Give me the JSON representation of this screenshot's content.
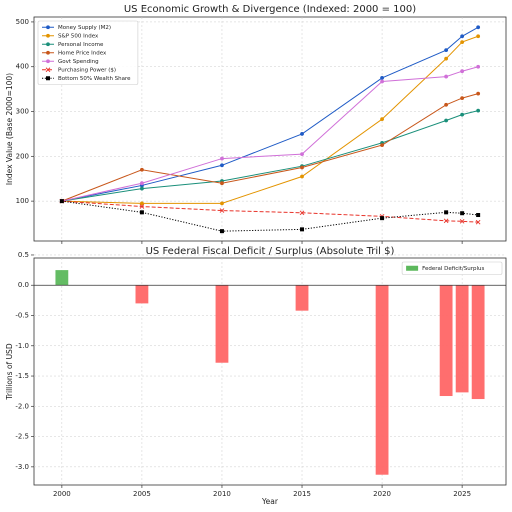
{
  "chart_data": [
    {
      "type": "line",
      "title": "US Economic Growth & Divergence (Indexed: 2000 = 100)",
      "y_label": "Index Value (Base 2000=100)",
      "x": [
        2000,
        2005,
        2010,
        2015,
        2020,
        2024,
        2025,
        2026
      ],
      "xlim": [
        1998.26,
        2027.74
      ],
      "xticks": [
        2000,
        2005,
        2010,
        2015,
        2020,
        2025
      ],
      "ylim": [
        11,
        511
      ],
      "yticks": [
        100,
        200,
        300,
        400,
        500
      ],
      "grid": true,
      "legend": "upper left",
      "series": [
        {
          "name": "Money Supply (M2)",
          "color": "#1f5bc6",
          "marker": "circle",
          "linestyle": "solid",
          "values": [
            100,
            135,
            180,
            250,
            375,
            437,
            468,
            488
          ]
        },
        {
          "name": "S&P 500 Index",
          "color": "#e39400",
          "marker": "circle",
          "linestyle": "solid",
          "values": [
            100,
            95,
            95,
            155,
            283,
            418,
            455,
            468
          ]
        },
        {
          "name": "Personal Income",
          "color": "#1a8f7a",
          "marker": "circle",
          "linestyle": "solid",
          "values": [
            100,
            128,
            145,
            178,
            230,
            280,
            293,
            302
          ]
        },
        {
          "name": "Home Price Index",
          "color": "#c8571b",
          "marker": "circle",
          "linestyle": "solid",
          "values": [
            100,
            170,
            140,
            175,
            225,
            315,
            330,
            340
          ]
        },
        {
          "name": "Govt Spending",
          "color": "#d070d8",
          "marker": "circle",
          "linestyle": "solid",
          "values": [
            100,
            140,
            195,
            205,
            367,
            378,
            390,
            400
          ]
        },
        {
          "name": "Purchasing Power ($)",
          "color": "#e8332a",
          "marker": "x",
          "linestyle": "dashed",
          "values": [
            100,
            88,
            79,
            74,
            66,
            56,
            55,
            53
          ]
        },
        {
          "name": "Bottom 50% Wealth Share",
          "color": "#000000",
          "marker": "square",
          "linestyle": "dotted",
          "values": [
            100,
            75,
            33,
            37,
            62,
            75,
            73,
            69
          ]
        }
      ]
    },
    {
      "type": "bar",
      "title": "US Federal Fiscal Deficit / Surplus (Absolute Tril $)",
      "x_label": "Year",
      "y_label": "Trillions of USD",
      "x": [
        2000,
        2005,
        2010,
        2015,
        2020,
        2024,
        2025,
        2026
      ],
      "xlim": [
        1998.26,
        2027.74
      ],
      "xticks": [
        2000,
        2005,
        2010,
        2015,
        2020,
        2025
      ],
      "ylim": [
        -3.3,
        0.45
      ],
      "yticks": [
        {
          "value": 0.5,
          "label": "0.5"
        },
        {
          "value": 0,
          "label": "0.0"
        },
        {
          "value": -0.5,
          "label": "-0.5"
        },
        {
          "value": -1,
          "label": "-1.0"
        },
        {
          "value": -1.5,
          "label": "-1.5"
        },
        {
          "value": -2,
          "label": "-2.0"
        },
        {
          "value": -2.5,
          "label": "-2.5"
        },
        {
          "value": -3,
          "label": "-3.0"
        }
      ],
      "grid": true,
      "legend": "upper right",
      "series": [
        {
          "name": "Federal Deficit/Surplus",
          "color": "#5cb85c",
          "negative_color": "#ff6666",
          "values": [
            0.25,
            -0.3,
            -1.28,
            -0.42,
            -3.13,
            -1.83,
            -1.77,
            -1.88
          ]
        }
      ]
    }
  ]
}
